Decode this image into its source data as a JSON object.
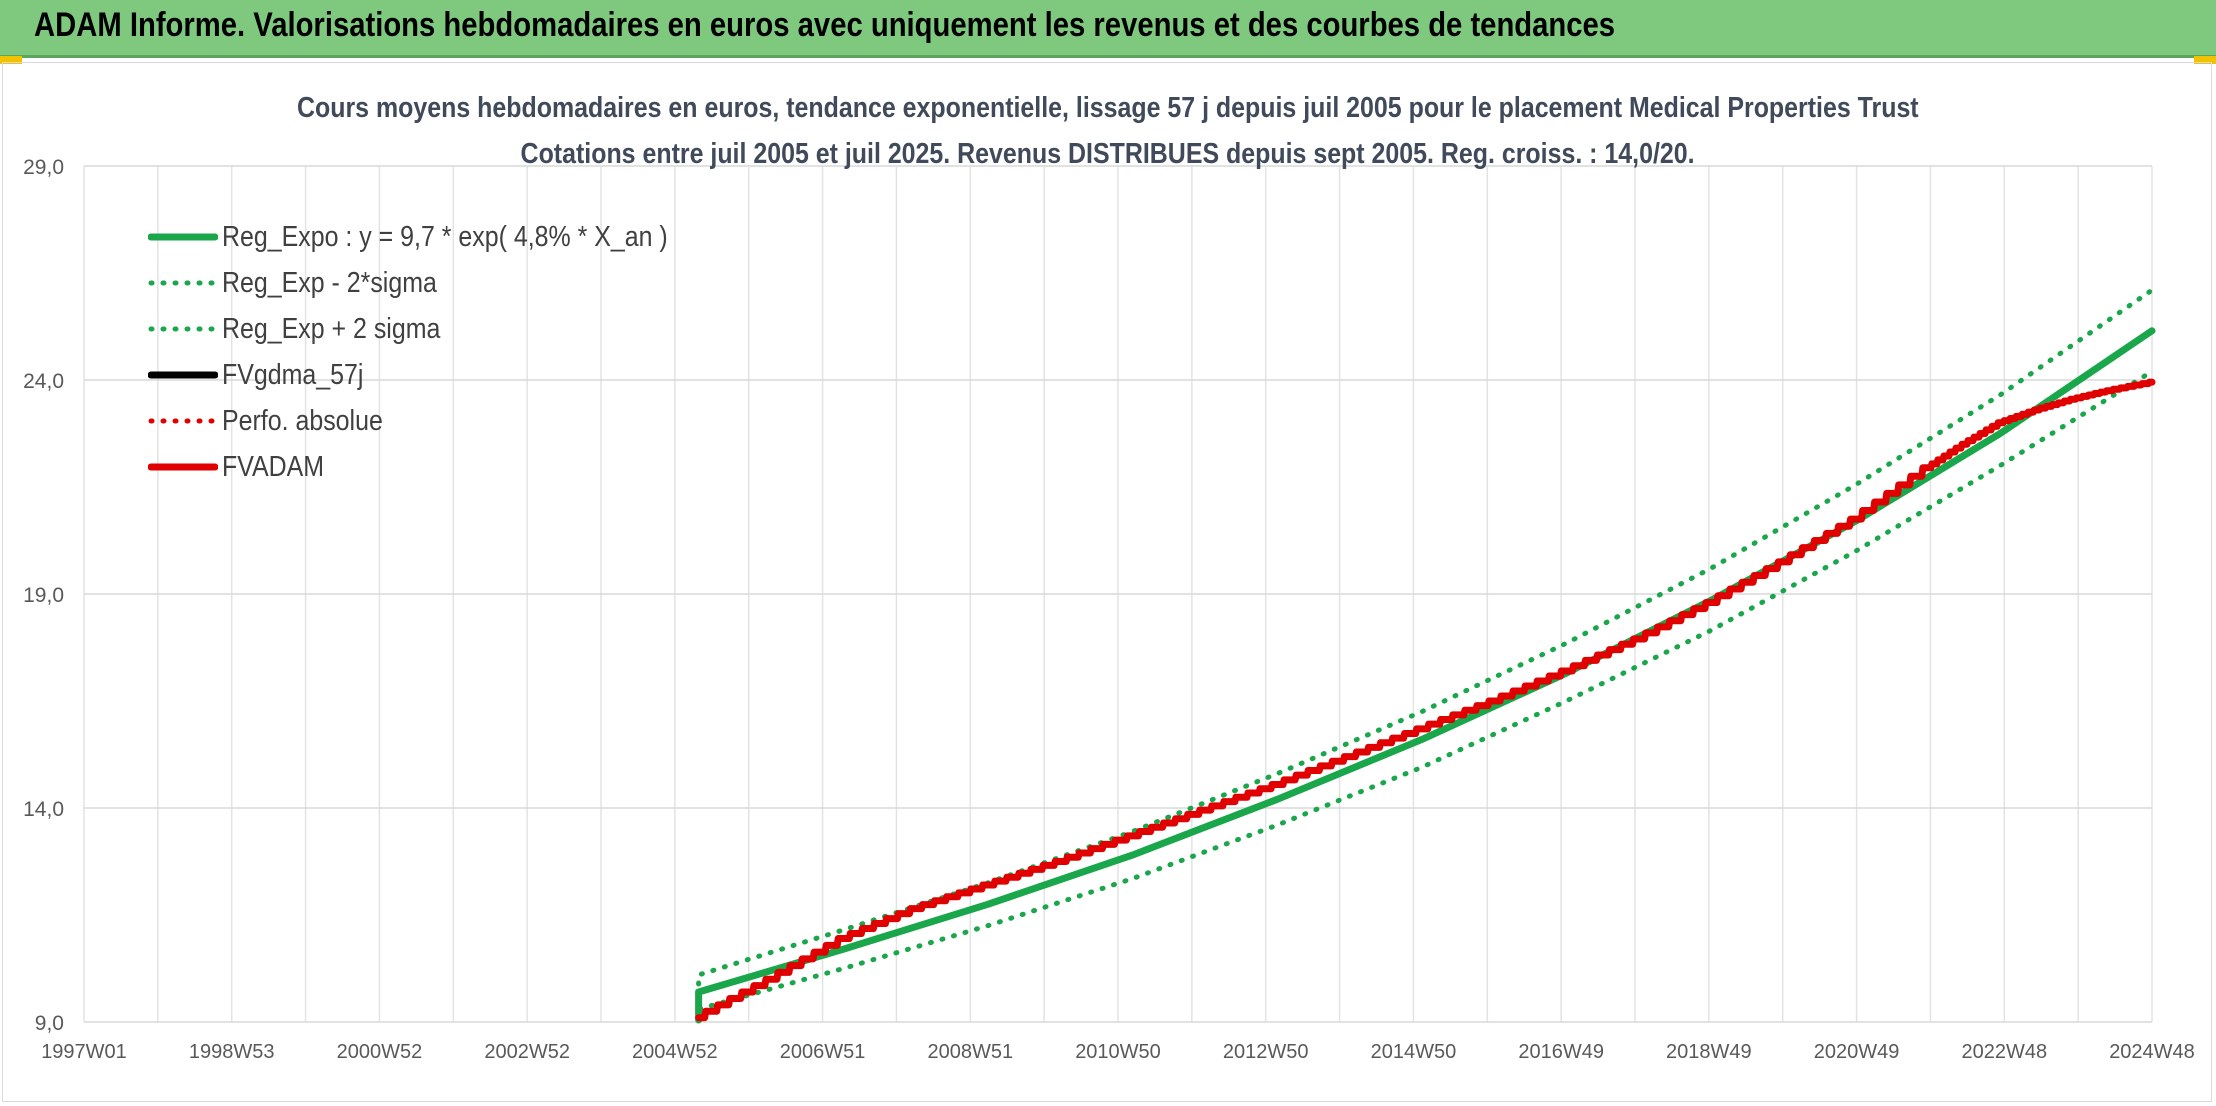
{
  "banner": {
    "title": "ADAM Informe. Valorisations hebdomadaires en euros avec uniquement les revenus et des courbes de tendances"
  },
  "chart_data": {
    "type": "line",
    "title": "Cours moyens hebdomadaires en euros, tendance exponentielle, lissage 57 j depuis juil 2005 pour le placement Medical Properties Trust",
    "subtitle": "Cotations entre juil 2005 et juil 2025. Revenus DISTRIBUES depuis sept 2005. Reg. croiss. : 14,0/20.",
    "xlabel": "",
    "ylabel": "",
    "x_tick_labels": [
      "1997W01",
      "1998W53",
      "2000W52",
      "2002W52",
      "2004W52",
      "2006W51",
      "2008W51",
      "2010W50",
      "2012W50",
      "2014W50",
      "2016W49",
      "2018W49",
      "2020W49",
      "2022W48",
      "2024W48"
    ],
    "x_range_years": [
      1997.0,
      2025.6
    ],
    "y_ticks": [
      9.0,
      14.0,
      19.0,
      24.0,
      29.0
    ],
    "y_tick_labels": [
      "9,0",
      "14,0",
      "19,0",
      "24,0",
      "29,0"
    ],
    "ylim": [
      9.0,
      29.0
    ],
    "grid": true,
    "legend_position": "top-left",
    "series": [
      {
        "name": "Reg_Expo : y = 9,7 * exp( 4,8% *  X_an )",
        "color": "#1aa64a",
        "style": "solid",
        "x": [
          2005.5,
          2007.5,
          2009.5,
          2011.5,
          2013.5,
          2015.5,
          2017.5,
          2019.5,
          2021.5,
          2023.5,
          2025.6
        ],
        "y": [
          9.7,
          10.7,
          11.75,
          12.9,
          14.2,
          15.6,
          17.15,
          18.85,
          20.7,
          22.75,
          25.15
        ]
      },
      {
        "name": "Reg_Exp - 2*sigma",
        "color": "#1aa64a",
        "style": "dotted",
        "x": [
          2005.5,
          2007.5,
          2009.5,
          2011.5,
          2013.5,
          2015.5,
          2017.5,
          2019.5,
          2021.5,
          2023.5,
          2025.6
        ],
        "y": [
          9.3,
          10.25,
          11.25,
          12.35,
          13.6,
          14.95,
          16.5,
          18.15,
          20.0,
          22.0,
          24.2
        ]
      },
      {
        "name": "Reg_Exp + 2 sigma",
        "color": "#1aa64a",
        "style": "dotted",
        "x": [
          2005.5,
          2007.5,
          2009.5,
          2011.5,
          2013.5,
          2015.5,
          2017.5,
          2019.5,
          2021.5,
          2023.5,
          2025.6
        ],
        "y": [
          10.1,
          11.15,
          12.25,
          13.45,
          14.8,
          16.25,
          17.85,
          19.6,
          21.55,
          23.65,
          26.1
        ]
      },
      {
        "name": "FVgdma_57j",
        "color": "#000000",
        "style": "solid",
        "x": [],
        "y": []
      },
      {
        "name": "Perfo. absolue",
        "color": "#e00000",
        "style": "dotted",
        "x": [],
        "y": []
      },
      {
        "name": "FVADAM",
        "color": "#e00000",
        "style": "solid",
        "x": [
          2005.5,
          2006.5,
          2007.5,
          2008.5,
          2009.5,
          2010.5,
          2011.5,
          2012.5,
          2013.5,
          2014.5,
          2015.5,
          2016.5,
          2017.5,
          2018.5,
          2019.5,
          2020.5,
          2021.5,
          2022.5,
          2023.0,
          2023.5,
          2024.0,
          2024.5,
          2025.0,
          2025.6
        ],
        "y": [
          9.1,
          10.0,
          10.95,
          11.65,
          12.2,
          12.75,
          13.35,
          13.95,
          14.55,
          15.2,
          15.85,
          16.5,
          17.2,
          17.95,
          18.8,
          19.75,
          20.75,
          21.95,
          22.5,
          23.0,
          23.3,
          23.55,
          23.75,
          23.95
        ]
      }
    ]
  }
}
